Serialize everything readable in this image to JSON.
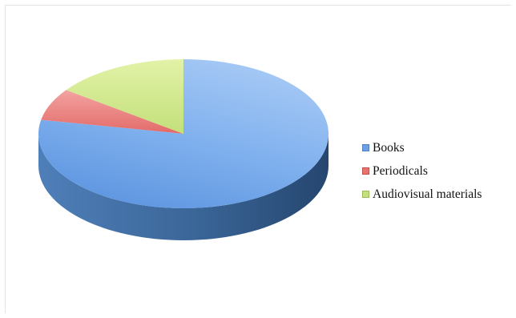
{
  "chart_data": {
    "type": "pie",
    "style": "3d",
    "categories": [
      "Books",
      "Periodicals",
      "Audiovisual materials"
    ],
    "values": [
      78,
      7,
      15
    ],
    "colors": [
      "#4f81bd",
      "#c0504d",
      "#9bbb59"
    ],
    "legend": {
      "placement": "right",
      "entries": [
        "Books",
        "Periodicals",
        "Audiovisual materials"
      ]
    }
  }
}
